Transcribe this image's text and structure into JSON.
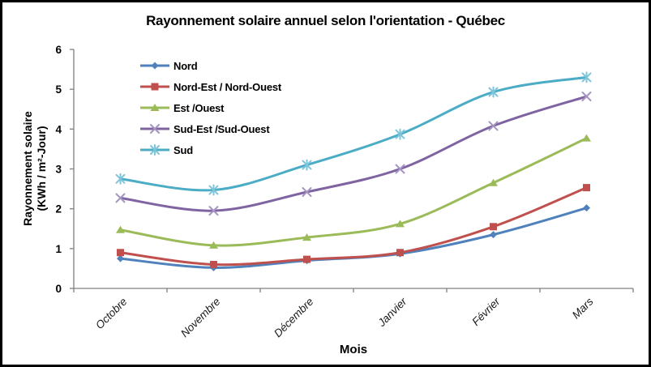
{
  "chart_data": {
    "type": "line",
    "title": "Rayonnement solaire annuel selon l'orientation - Québec",
    "xlabel": "Mois",
    "ylabel": "Rayonnement solaire (KWh / m²-Jour)",
    "ylabel_lines": [
      "Rayonnement solaire",
      "(KWh / m²-Jour)"
    ],
    "categories": [
      "Octobre",
      "Novembre",
      "Décembre",
      "Janvier",
      "Février",
      "Mars"
    ],
    "ylim": [
      0,
      6
    ],
    "yticks": [
      0,
      1,
      2,
      3,
      4,
      5,
      6
    ],
    "grid": false,
    "smoothed_lines": true,
    "legend_position": "inside-top-left",
    "axis_color": "#808080",
    "series": [
      {
        "name": "Nord",
        "color": "#4F81BD",
        "marker": "diamond",
        "marker_color": "#4F81BD",
        "values": [
          0.75,
          0.52,
          0.7,
          0.87,
          1.35,
          2.02
        ]
      },
      {
        "name": "Nord-Est / Nord-Ouest",
        "color": "#C0504D",
        "marker": "square",
        "marker_color": "#C0504D",
        "values": [
          0.9,
          0.6,
          0.73,
          0.9,
          1.55,
          2.53
        ]
      },
      {
        "name": "Est /Ouest",
        "color": "#9BBB59",
        "marker": "triangle",
        "marker_color": "#9BBB59",
        "values": [
          1.47,
          1.08,
          1.28,
          1.62,
          2.65,
          3.77
        ]
      },
      {
        "name": "Sud-Est /Sud-Ouest",
        "color": "#8064A2",
        "marker": "x",
        "marker_color": "#A495C2",
        "values": [
          2.27,
          1.95,
          2.42,
          3.0,
          4.08,
          4.82
        ]
      },
      {
        "name": "Sud",
        "color": "#4BACC6",
        "marker": "asterisk",
        "marker_color": "#7EC5DA",
        "values": [
          2.75,
          2.47,
          3.1,
          3.87,
          4.93,
          5.3
        ]
      }
    ]
  }
}
